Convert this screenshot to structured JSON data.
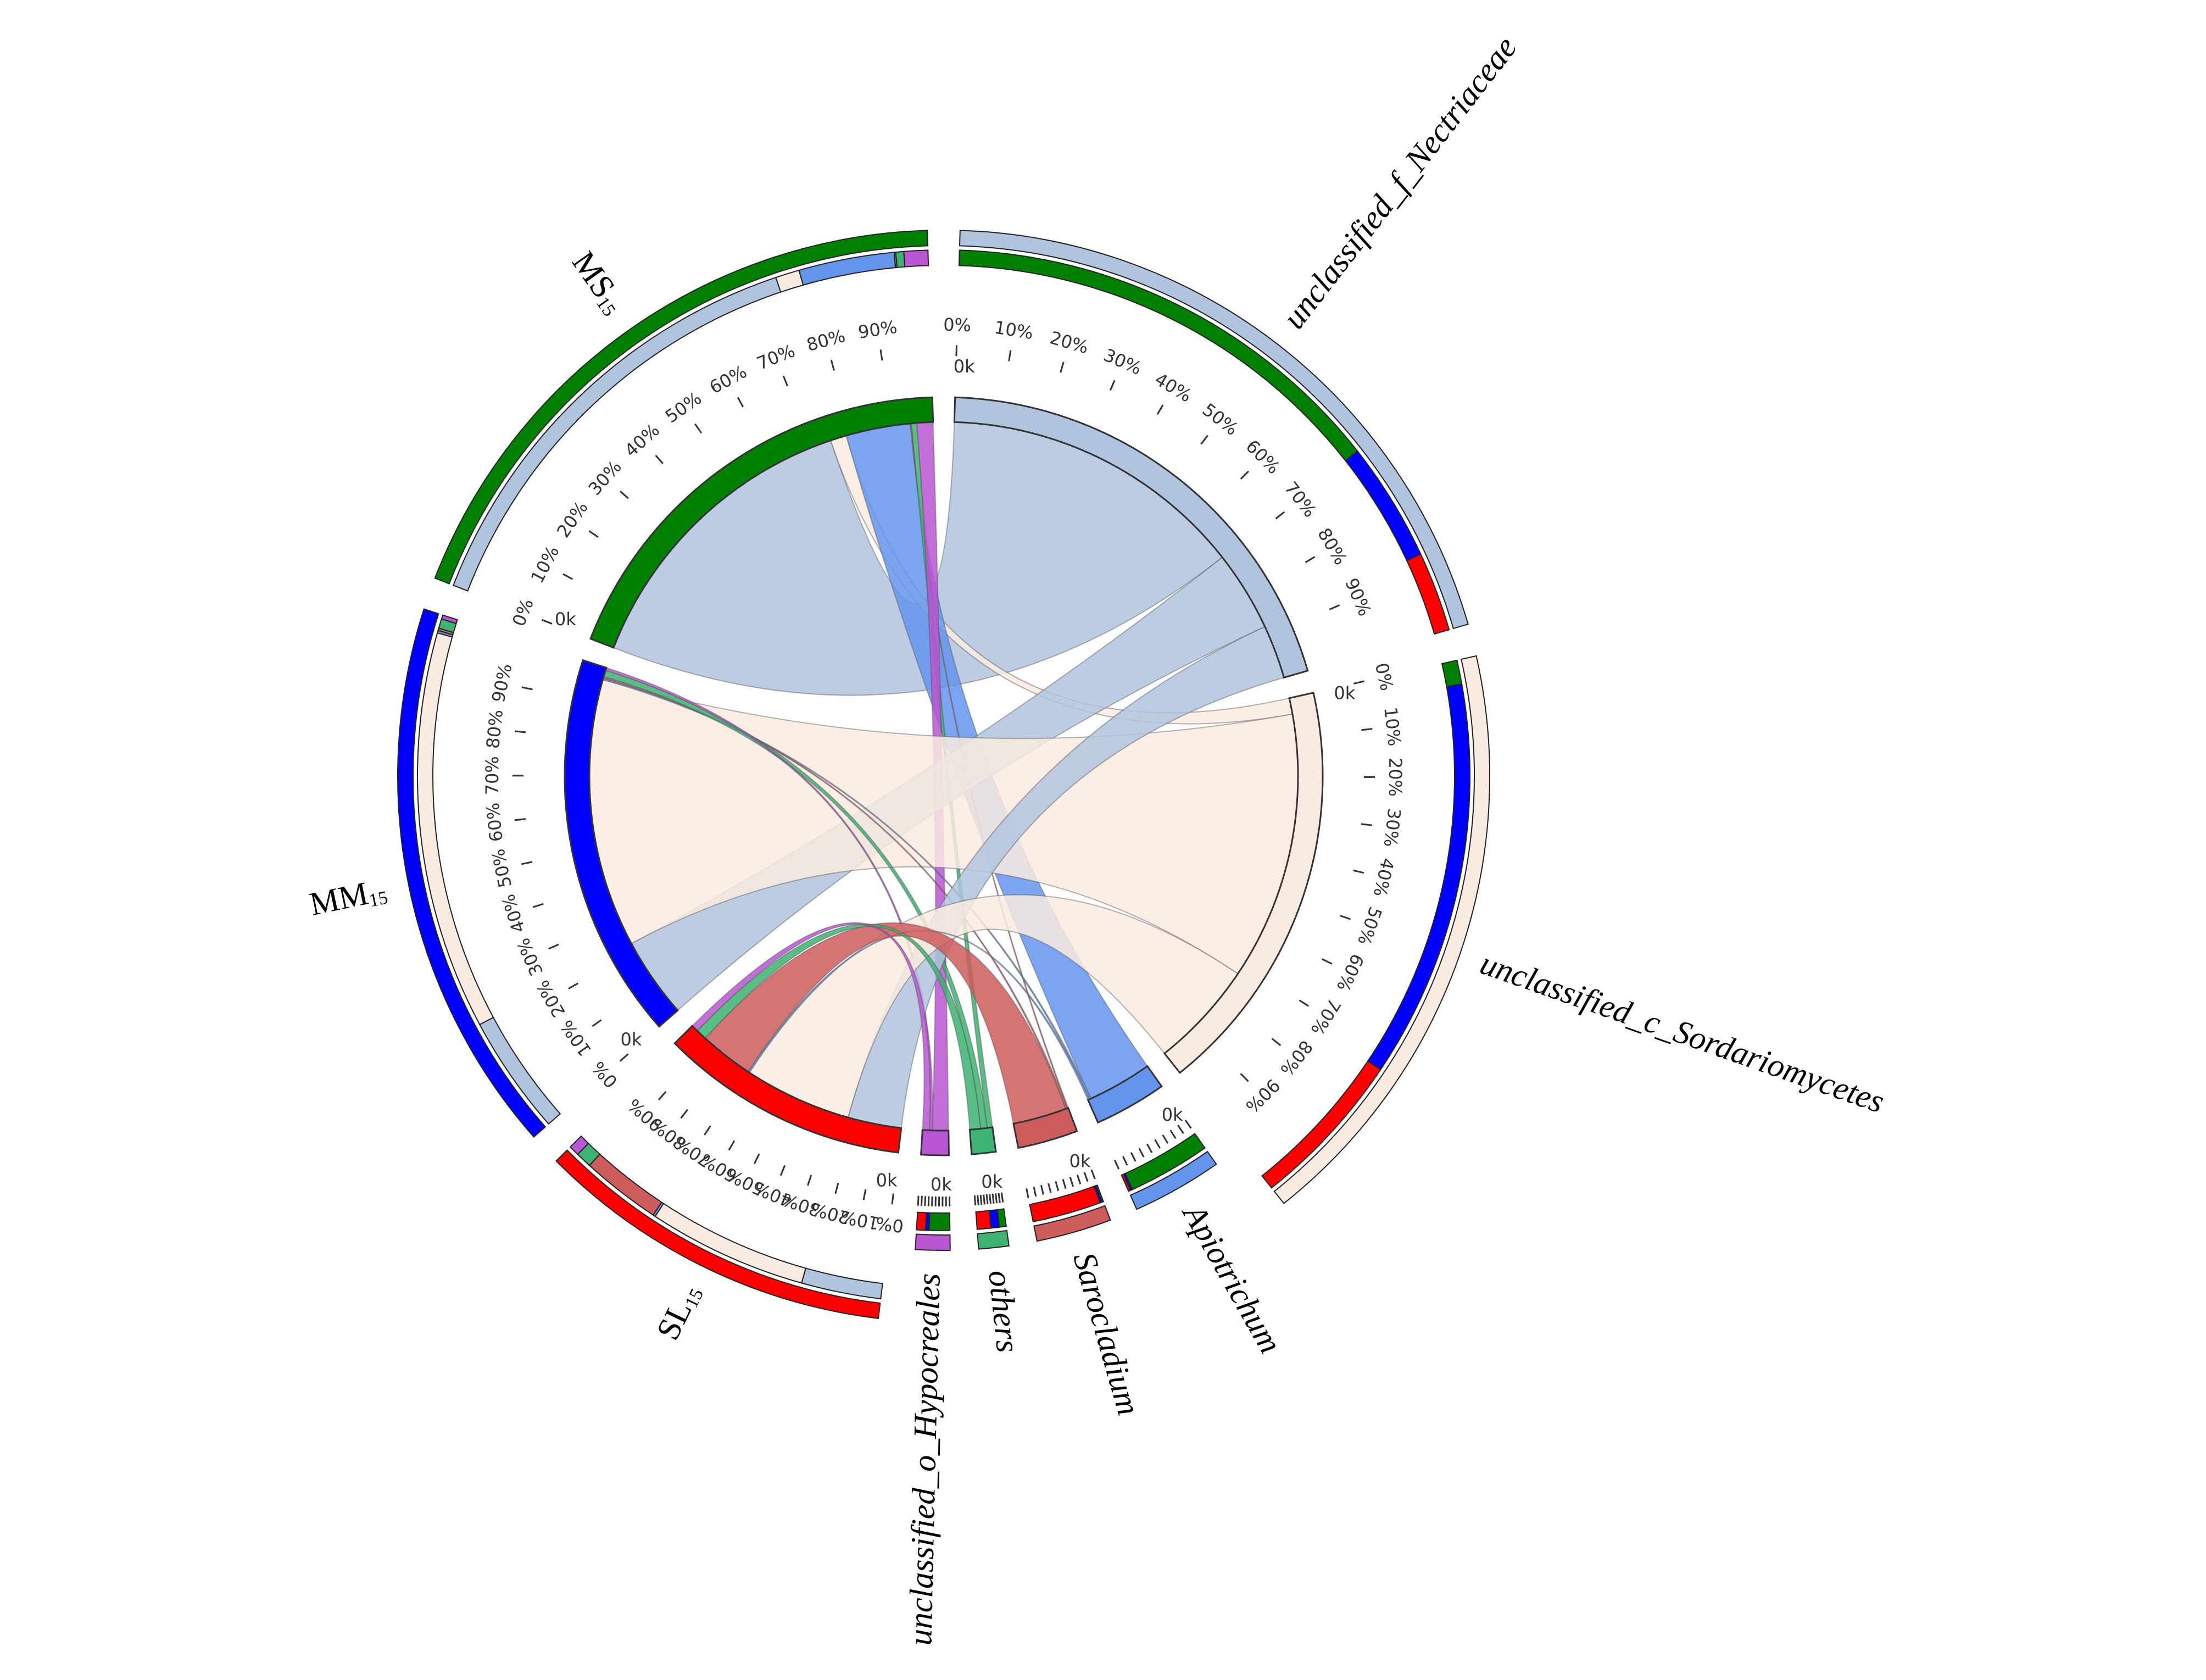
{
  "chart_data": {
    "type": "chord",
    "samples": [
      {
        "name": "MS",
        "sub": "15",
        "color": "#008000"
      },
      {
        "name": "MM",
        "sub": "15",
        "color": "#0000ff"
      },
      {
        "name": "SL",
        "sub": "15",
        "color": "#ff0000"
      }
    ],
    "taxa": [
      {
        "name": "unclassified_f_Nectriaceae",
        "color": "#b0c4de"
      },
      {
        "name": "unclassified_c_Sordariomycetes",
        "color": "#faebe0"
      },
      {
        "name": "Apiotrichum",
        "color": "#6495ed"
      },
      {
        "name": "Sarocladium",
        "color": "#cd5c5c"
      },
      {
        "name": "others",
        "color": "#3cb371"
      },
      {
        "name": "unclassified_o_Hypocreales",
        "color": "#ba55d3"
      }
    ],
    "flows": [
      {
        "sample": "MS",
        "taxon": "unclassified_f_Nectriaceae",
        "value": 57
      },
      {
        "sample": "MS",
        "taxon": "unclassified_c_Sordariomycetes",
        "value": 3
      },
      {
        "sample": "MS",
        "taxon": "Apiotrichum",
        "value": 12
      },
      {
        "sample": "MS",
        "taxon": "Sarocladium",
        "value": 0.2
      },
      {
        "sample": "MS",
        "taxon": "others",
        "value": 1.0
      },
      {
        "sample": "MS",
        "taxon": "unclassified_o_Hypocreales",
        "value": 3
      },
      {
        "sample": "MM",
        "taxon": "unclassified_f_Nectriaceae",
        "value": 15
      },
      {
        "sample": "MM",
        "taxon": "unclassified_c_Sordariomycetes",
        "value": 50
      },
      {
        "sample": "MM",
        "taxon": "Apiotrichum",
        "value": 0.3
      },
      {
        "sample": "MM",
        "taxon": "Sarocladium",
        "value": 0.3
      },
      {
        "sample": "MM",
        "taxon": "others",
        "value": 1.2
      },
      {
        "sample": "MM",
        "taxon": "unclassified_o_Hypocreales",
        "value": 0.5
      },
      {
        "sample": "SL",
        "taxon": "unclassified_f_Nectriaceae",
        "value": 10
      },
      {
        "sample": "SL",
        "taxon": "unclassified_c_Sordariomycetes",
        "value": 20
      },
      {
        "sample": "SL",
        "taxon": "Apiotrichum",
        "value": 0.3
      },
      {
        "sample": "SL",
        "taxon": "Sarocladium",
        "value": 10
      },
      {
        "sample": "SL",
        "taxon": "others",
        "value": 2
      },
      {
        "sample": "SL",
        "taxon": "unclassified_o_Hypocreales",
        "value": 1.3
      }
    ],
    "percent_ticks": [
      "0%",
      "10%",
      "20%",
      "30%",
      "40%",
      "50%",
      "60%",
      "70%",
      "80%",
      "90%"
    ],
    "inner_tick_label": "0k"
  }
}
